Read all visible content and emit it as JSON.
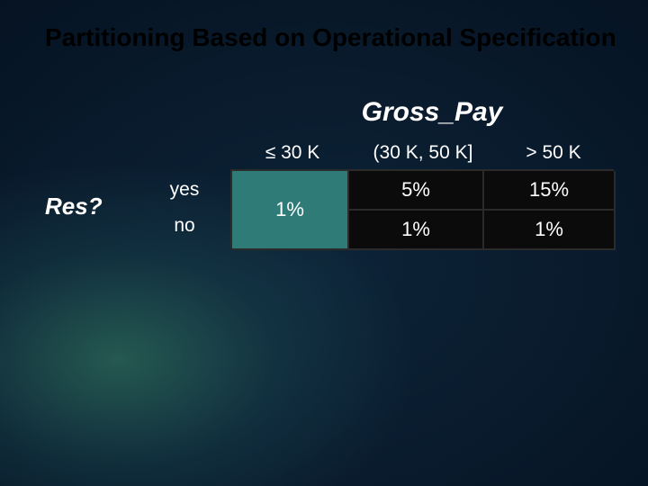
{
  "title": "Partitioning Based on Operational Specification",
  "column_group_title": "Gross_Pay",
  "row_group_title": "Res?",
  "columns": [
    "≤ 30 K",
    "(30 K, 50 K]",
    "> 50 K"
  ],
  "rows": [
    "yes",
    "no"
  ],
  "table": {
    "merged_value": "1%",
    "cells": {
      "r0c1": "5%",
      "r0c2": "15%",
      "r1c1": "1%",
      "r1c2": "1%"
    }
  },
  "palette": {
    "title_color": "#000000",
    "text_color": "#ffffff",
    "merged_bg": "#2f7b78",
    "cell_bg": "#0b0b0b",
    "cell_border": "#2b2b2b",
    "bg_inner": "#0d2438",
    "bg_outer": "#020811"
  },
  "layout": {
    "type": "table",
    "slide_size": [
      720,
      540
    ],
    "title_fontsize": 28,
    "group_title_fontsize": 30,
    "header_fontsize": 21,
    "cell_fontsize": 22,
    "merged_rowspan": 2,
    "data_cols": 3,
    "data_rows": 2
  }
}
